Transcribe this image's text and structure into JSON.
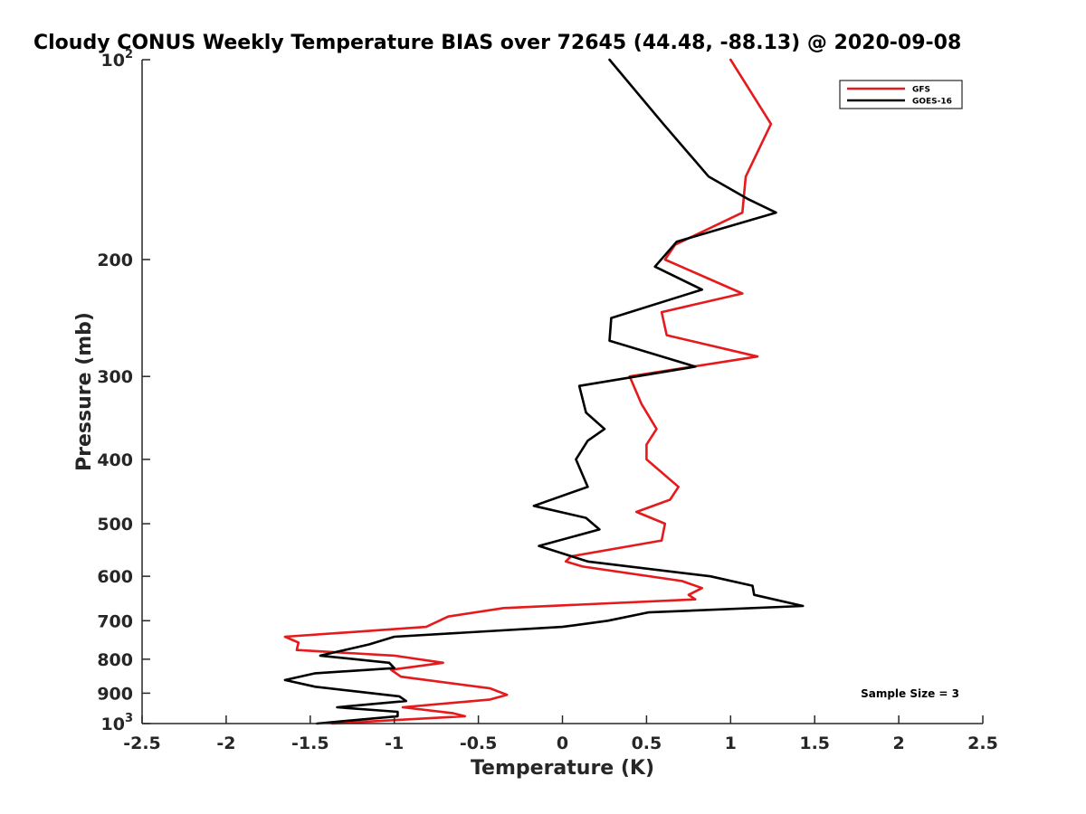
{
  "chart_data": {
    "type": "line",
    "title": "Cloudy CONUS Weekly Temperature BIAS over 72645 (44.48, -88.13) @ 2020-09-08",
    "xlabel": "Temperature (K)",
    "ylabel": "Pressure (mb)",
    "xlim": [
      -2.5,
      2.5
    ],
    "ylim": [
      1000,
      100
    ],
    "y_scale": "log",
    "y_reversed": true,
    "grid": false,
    "legend_position": "top-right",
    "x_ticks": [
      -2.5,
      -2,
      -1.5,
      -1,
      -0.5,
      0,
      0.5,
      1,
      1.5,
      2,
      2.5
    ],
    "x_tick_labels": [
      "-2.5",
      "-2",
      "-1.5",
      "-1",
      "-0.5",
      "0",
      "0.5",
      "1",
      "1.5",
      "2",
      "2.5"
    ],
    "y_ticks": [
      100,
      200,
      300,
      400,
      500,
      600,
      700,
      800,
      900,
      1000
    ],
    "y_tick_labels": [
      {
        "base": "10",
        "exp": "2"
      },
      {
        "base": "200",
        "exp": ""
      },
      {
        "base": "300",
        "exp": ""
      },
      {
        "base": "400",
        "exp": ""
      },
      {
        "base": "500",
        "exp": ""
      },
      {
        "base": "600",
        "exp": ""
      },
      {
        "base": "700",
        "exp": ""
      },
      {
        "base": "800",
        "exp": ""
      },
      {
        "base": "900",
        "exp": ""
      },
      {
        "base": "10",
        "exp": "3"
      }
    ],
    "series": [
      {
        "name": "GFS",
        "color": "#e41a1c",
        "points": [
          [
            1.0,
            100
          ],
          [
            1.24,
            125
          ],
          [
            1.09,
            150
          ],
          [
            1.07,
            170
          ],
          [
            0.67,
            190
          ],
          [
            0.61,
            200
          ],
          [
            1.07,
            225
          ],
          [
            0.59,
            240
          ],
          [
            0.62,
            260
          ],
          [
            1.16,
            280
          ],
          [
            0.4,
            300
          ],
          [
            0.47,
            330
          ],
          [
            0.56,
            360
          ],
          [
            0.5,
            380
          ],
          [
            0.5,
            400
          ],
          [
            0.69,
            440
          ],
          [
            0.64,
            460
          ],
          [
            0.44,
            480
          ],
          [
            0.61,
            500
          ],
          [
            0.59,
            530
          ],
          [
            0.05,
            560
          ],
          [
            0.02,
            570
          ],
          [
            0.12,
            580
          ],
          [
            0.71,
            610
          ],
          [
            0.83,
            625
          ],
          [
            0.75,
            640
          ],
          [
            0.79,
            650
          ],
          [
            -0.35,
            670
          ],
          [
            -0.68,
            690
          ],
          [
            -0.81,
            715
          ],
          [
            -1.65,
            740
          ],
          [
            -1.57,
            755
          ],
          [
            -1.58,
            775
          ],
          [
            -1.0,
            790
          ],
          [
            -0.71,
            810
          ],
          [
            -1.02,
            830
          ],
          [
            -0.96,
            850
          ],
          [
            -0.43,
            885
          ],
          [
            -0.33,
            905
          ],
          [
            -0.43,
            920
          ],
          [
            -0.95,
            945
          ],
          [
            -0.65,
            965
          ],
          [
            -0.58,
            975
          ],
          [
            -1.37,
            1000
          ]
        ]
      },
      {
        "name": "GOES-16",
        "color": "#000000",
        "points": [
          [
            0.28,
            100
          ],
          [
            0.6,
            125
          ],
          [
            0.87,
            150
          ],
          [
            1.1,
            162
          ],
          [
            1.27,
            170
          ],
          [
            0.68,
            188
          ],
          [
            0.55,
            205
          ],
          [
            0.83,
            222
          ],
          [
            0.29,
            245
          ],
          [
            0.28,
            265
          ],
          [
            0.79,
            290
          ],
          [
            0.1,
            310
          ],
          [
            0.14,
            340
          ],
          [
            0.25,
            360
          ],
          [
            0.15,
            375
          ],
          [
            0.08,
            400
          ],
          [
            0.15,
            440
          ],
          [
            -0.17,
            470
          ],
          [
            0.14,
            490
          ],
          [
            0.22,
            510
          ],
          [
            -0.14,
            540
          ],
          [
            0.15,
            570
          ],
          [
            0.88,
            600
          ],
          [
            1.13,
            620
          ],
          [
            1.14,
            640
          ],
          [
            1.43,
            665
          ],
          [
            0.51,
            680
          ],
          [
            0.27,
            700
          ],
          [
            0.0,
            715
          ],
          [
            -1.0,
            740
          ],
          [
            -1.15,
            760
          ],
          [
            -1.44,
            790
          ],
          [
            -1.03,
            810
          ],
          [
            -1.0,
            825
          ],
          [
            -1.47,
            840
          ],
          [
            -1.65,
            860
          ],
          [
            -1.47,
            880
          ],
          [
            -0.97,
            910
          ],
          [
            -0.93,
            925
          ],
          [
            -1.34,
            945
          ],
          [
            -0.98,
            960
          ],
          [
            -0.98,
            975
          ],
          [
            -1.46,
            1000
          ]
        ]
      }
    ],
    "annotations": [
      {
        "text": "Sample Size = 3",
        "position": "bottom-right"
      }
    ]
  }
}
